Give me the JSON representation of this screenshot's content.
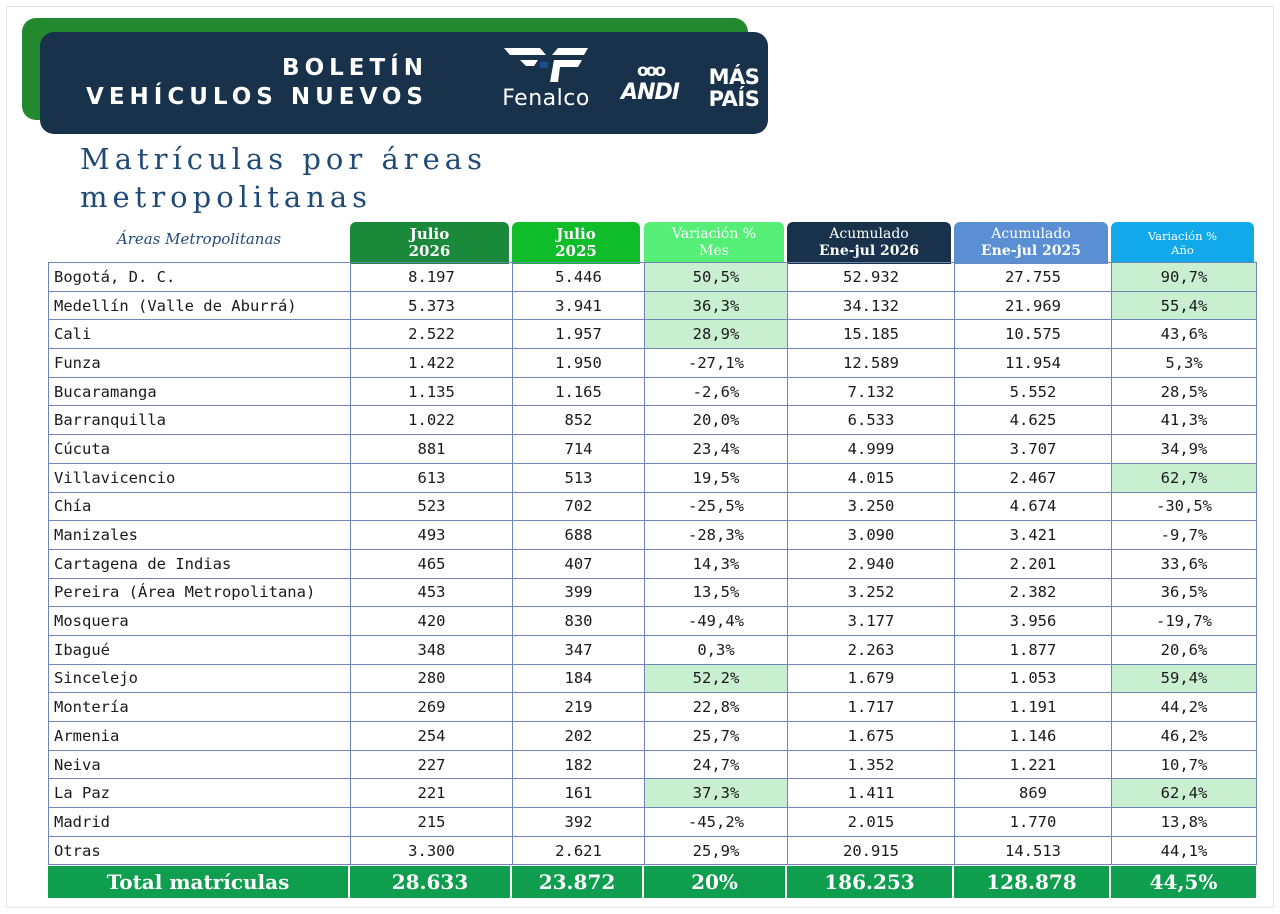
{
  "header": {
    "title_line1": "BOLETÍN",
    "title_line2": "VEHÍCULOS NUEVOS",
    "logos": {
      "fenalco": "Fenalco",
      "andi": "ANDI",
      "andi_rings": "ooo",
      "maspais_line1": "MÁS",
      "maspais_line2": "PAÍS"
    }
  },
  "section": {
    "title_line1": "Matrículas por áreas",
    "title_line2": "metropolitanas"
  },
  "colors": {
    "dark_green": "#1a8a3a",
    "light_green": "#0fbd2a",
    "mint": "#55ef78",
    "navy": "#17324a",
    "blue": "#5b8fd4",
    "cyan": "#12a9ea",
    "highlight": "#c9efd1",
    "total": "#0f9d4e"
  },
  "table": {
    "row_header": "Áreas Metropolitanas",
    "columns": [
      {
        "line1": "Julio",
        "line2": "2026"
      },
      {
        "line1": "Julio",
        "line2": "2025"
      },
      {
        "line1": "Variación %",
        "line2": "Mes"
      },
      {
        "line1": "Acumulado",
        "line2": "Ene-jul 2026"
      },
      {
        "line1": "Acumulado",
        "line2": "Ene-jul 2025"
      },
      {
        "line1": "Variación %",
        "line2": "Año"
      }
    ],
    "rows": [
      {
        "area": "Bogotá, D. C.",
        "jul26": "8.197",
        "jul25": "5.446",
        "var_mes": "50,5%",
        "acum26": "52.932",
        "acum25": "27.755",
        "var_ano": "90,7%",
        "hl_mes": true,
        "hl_ano": true
      },
      {
        "area": "Medellín (Valle de Aburrá)",
        "jul26": "5.373",
        "jul25": "3.941",
        "var_mes": "36,3%",
        "acum26": "34.132",
        "acum25": "21.969",
        "var_ano": "55,4%",
        "hl_mes": true,
        "hl_ano": true
      },
      {
        "area": "Cali",
        "jul26": "2.522",
        "jul25": "1.957",
        "var_mes": "28,9%",
        "acum26": "15.185",
        "acum25": "10.575",
        "var_ano": "43,6%",
        "hl_mes": true,
        "hl_ano": false
      },
      {
        "area": "Funza",
        "jul26": "1.422",
        "jul25": "1.950",
        "var_mes": "-27,1%",
        "acum26": "12.589",
        "acum25": "11.954",
        "var_ano": "5,3%",
        "hl_mes": false,
        "hl_ano": false
      },
      {
        "area": "Bucaramanga",
        "jul26": "1.135",
        "jul25": "1.165",
        "var_mes": "-2,6%",
        "acum26": "7.132",
        "acum25": "5.552",
        "var_ano": "28,5%",
        "hl_mes": false,
        "hl_ano": false
      },
      {
        "area": "Barranquilla",
        "jul26": "1.022",
        "jul25": "852",
        "var_mes": "20,0%",
        "acum26": "6.533",
        "acum25": "4.625",
        "var_ano": "41,3%",
        "hl_mes": false,
        "hl_ano": false
      },
      {
        "area": "Cúcuta",
        "jul26": "881",
        "jul25": "714",
        "var_mes": "23,4%",
        "acum26": "4.999",
        "acum25": "3.707",
        "var_ano": "34,9%",
        "hl_mes": false,
        "hl_ano": false
      },
      {
        "area": "Villavicencio",
        "jul26": "613",
        "jul25": "513",
        "var_mes": "19,5%",
        "acum26": "4.015",
        "acum25": "2.467",
        "var_ano": "62,7%",
        "hl_mes": false,
        "hl_ano": true
      },
      {
        "area": "Chía",
        "jul26": "523",
        "jul25": "702",
        "var_mes": "-25,5%",
        "acum26": "3.250",
        "acum25": "4.674",
        "var_ano": "-30,5%",
        "hl_mes": false,
        "hl_ano": false
      },
      {
        "area": "Manizales",
        "jul26": "493",
        "jul25": "688",
        "var_mes": "-28,3%",
        "acum26": "3.090",
        "acum25": "3.421",
        "var_ano": "-9,7%",
        "hl_mes": false,
        "hl_ano": false
      },
      {
        "area": "Cartagena de Indias",
        "jul26": "465",
        "jul25": "407",
        "var_mes": "14,3%",
        "acum26": "2.940",
        "acum25": "2.201",
        "var_ano": "33,6%",
        "hl_mes": false,
        "hl_ano": false
      },
      {
        "area": "Pereira (Área Metropolitana)",
        "jul26": "453",
        "jul25": "399",
        "var_mes": "13,5%",
        "acum26": "3.252",
        "acum25": "2.382",
        "var_ano": "36,5%",
        "hl_mes": false,
        "hl_ano": false
      },
      {
        "area": "Mosquera",
        "jul26": "420",
        "jul25": "830",
        "var_mes": "-49,4%",
        "acum26": "3.177",
        "acum25": "3.956",
        "var_ano": "-19,7%",
        "hl_mes": false,
        "hl_ano": false
      },
      {
        "area": "Ibagué",
        "jul26": "348",
        "jul25": "347",
        "var_mes": "0,3%",
        "acum26": "2.263",
        "acum25": "1.877",
        "var_ano": "20,6%",
        "hl_mes": false,
        "hl_ano": false
      },
      {
        "area": "Sincelejo",
        "jul26": "280",
        "jul25": "184",
        "var_mes": "52,2%",
        "acum26": "1.679",
        "acum25": "1.053",
        "var_ano": "59,4%",
        "hl_mes": true,
        "hl_ano": true
      },
      {
        "area": "Montería",
        "jul26": "269",
        "jul25": "219",
        "var_mes": "22,8%",
        "acum26": "1.717",
        "acum25": "1.191",
        "var_ano": "44,2%",
        "hl_mes": false,
        "hl_ano": false
      },
      {
        "area": "Armenia",
        "jul26": "254",
        "jul25": "202",
        "var_mes": "25,7%",
        "acum26": "1.675",
        "acum25": "1.146",
        "var_ano": "46,2%",
        "hl_mes": false,
        "hl_ano": false
      },
      {
        "area": "Neiva",
        "jul26": "227",
        "jul25": "182",
        "var_mes": "24,7%",
        "acum26": "1.352",
        "acum25": "1.221",
        "var_ano": "10,7%",
        "hl_mes": false,
        "hl_ano": false
      },
      {
        "area": "La Paz",
        "jul26": "221",
        "jul25": "161",
        "var_mes": "37,3%",
        "acum26": "1.411",
        "acum25": "869",
        "var_ano": "62,4%",
        "hl_mes": true,
        "hl_ano": true
      },
      {
        "area": "Madrid",
        "jul26": "215",
        "jul25": "392",
        "var_mes": "-45,2%",
        "acum26": "2.015",
        "acum25": "1.770",
        "var_ano": "13,8%",
        "hl_mes": false,
        "hl_ano": false
      },
      {
        "area": "Otras",
        "jul26": "3.300",
        "jul25": "2.621",
        "var_mes": "25,9%",
        "acum26": "20.915",
        "acum25": "14.513",
        "var_ano": "44,1%",
        "hl_mes": false,
        "hl_ano": false
      }
    ],
    "total": {
      "label": "Total matrículas",
      "jul26": "28.633",
      "jul25": "23.872",
      "var_mes": "20%",
      "acum26": "186.253",
      "acum25": "128.878",
      "var_ano": "44,5%"
    }
  }
}
